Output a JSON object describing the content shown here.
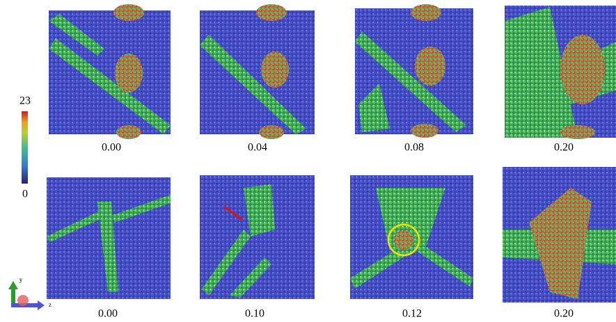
{
  "colorbar": {
    "max": "23",
    "min": "0"
  },
  "rows": [
    {
      "panels": [
        {
          "label": "0.00"
        },
        {
          "label": "0.04"
        },
        {
          "label": "0.08"
        },
        {
          "label": "0.20"
        }
      ]
    },
    {
      "panels": [
        {
          "label": "0.00"
        },
        {
          "label": "0.10"
        },
        {
          "label": "0.12"
        },
        {
          "label": "0.20"
        }
      ]
    }
  ],
  "axes": {
    "y": "y",
    "z": "z"
  }
}
